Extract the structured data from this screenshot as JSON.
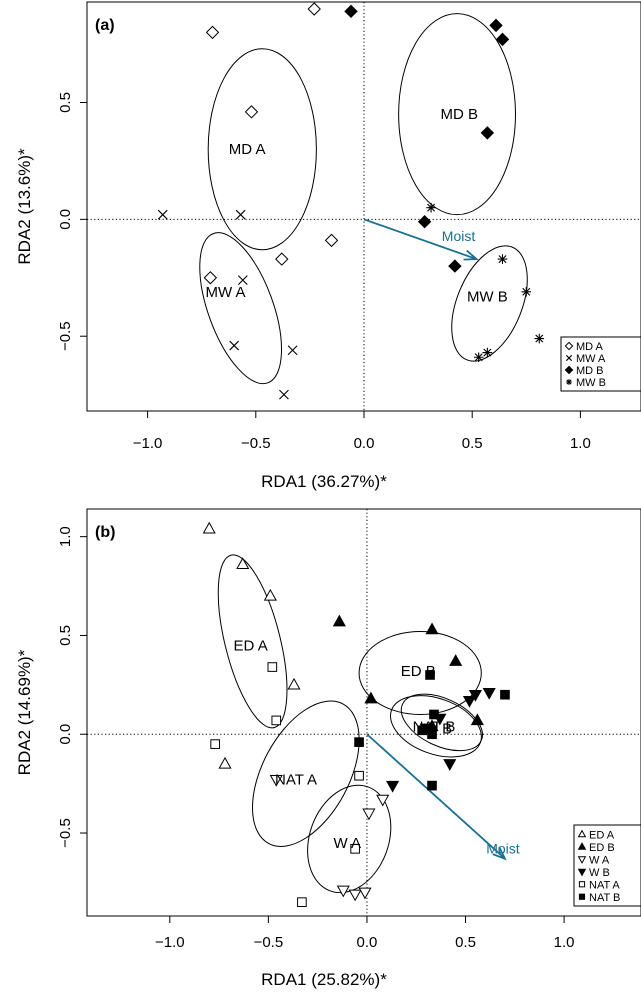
{
  "chart_data": [
    {
      "type": "scatter",
      "panel_label": "(a)",
      "xlabel": "RDA1 (36.27%)*",
      "ylabel": "RDA2 (13.6%)*",
      "xlim": [
        -1.28,
        1.28
      ],
      "ylim": [
        -0.82,
        0.93
      ],
      "xticks": [
        -1.0,
        -0.5,
        0.0,
        0.5,
        1.0
      ],
      "yticks": [
        -0.5,
        0.0,
        0.5
      ],
      "xtick_labels": [
        "−1.0",
        "−0.5",
        "0.0",
        "0.5",
        "1.0"
      ],
      "ytick_labels": [
        "−0.5",
        "0.0",
        "0.5"
      ],
      "reference_lines": {
        "x": 0,
        "y": 0,
        "style": "dotted"
      },
      "vector": {
        "label": "Moist",
        "x": 0.52,
        "y": -0.17,
        "color": "#1a7091"
      },
      "legend": {
        "placement": "bottom-right",
        "entries": [
          {
            "label": "MD A",
            "symbol": "diamond-open"
          },
          {
            "label": "MW A",
            "symbol": "x"
          },
          {
            "label": "MD B",
            "symbol": "diamond-filled"
          },
          {
            "label": "MW B",
            "symbol": "asterisk"
          }
        ]
      },
      "groups": [
        {
          "label": "MD A",
          "symbol": "diamond-open",
          "points": [
            [
              -0.7,
              0.8
            ],
            [
              -0.23,
              0.9
            ],
            [
              -0.52,
              0.46
            ],
            [
              -0.15,
              -0.09
            ],
            [
              -0.38,
              -0.17
            ],
            [
              -0.71,
              -0.25
            ]
          ],
          "ellipse": {
            "cx": -0.47,
            "cy": 0.3,
            "rx": 0.25,
            "ry": 0.43,
            "angle": 0
          },
          "label_pos": [
            -0.54,
            0.3
          ]
        },
        {
          "label": "MW A",
          "symbol": "x",
          "points": [
            [
              -0.93,
              0.02
            ],
            [
              -0.57,
              0.02
            ],
            [
              -0.56,
              -0.26
            ],
            [
              -0.6,
              -0.54
            ],
            [
              -0.33,
              -0.56
            ],
            [
              -0.37,
              -0.75
            ]
          ],
          "ellipse": {
            "cx": -0.57,
            "cy": -0.38,
            "rx": 0.15,
            "ry": 0.34,
            "angle": 20
          },
          "label_pos": [
            -0.64,
            -0.31
          ]
        },
        {
          "label": "MD B",
          "symbol": "diamond-filled",
          "points": [
            [
              -0.06,
              0.89
            ],
            [
              0.61,
              0.83
            ],
            [
              0.64,
              0.77
            ],
            [
              0.57,
              0.37
            ],
            [
              0.28,
              -0.01
            ],
            [
              0.42,
              -0.2
            ]
          ],
          "ellipse": {
            "cx": 0.43,
            "cy": 0.45,
            "rx": 0.27,
            "ry": 0.43,
            "angle": 0
          },
          "label_pos": [
            0.44,
            0.45
          ]
        },
        {
          "label": "MW B",
          "symbol": "asterisk",
          "points": [
            [
              0.31,
              0.05
            ],
            [
              0.64,
              -0.17
            ],
            [
              0.75,
              -0.31
            ],
            [
              0.81,
              -0.51
            ],
            [
              0.57,
              -0.57
            ],
            [
              0.53,
              -0.59
            ]
          ],
          "ellipse": {
            "cx": 0.58,
            "cy": -0.36,
            "rx": 0.15,
            "ry": 0.26,
            "angle": -22
          },
          "label_pos": [
            0.57,
            -0.33
          ]
        }
      ]
    },
    {
      "type": "scatter",
      "panel_label": "(b)",
      "xlabel": "RDA1 (25.82%)*",
      "ylabel": "RDA2 (14.69%)*",
      "xlim": [
        -1.42,
        1.39
      ],
      "ylim": [
        -0.92,
        1.14
      ],
      "xticks": [
        -1.0,
        -0.5,
        0.0,
        0.5,
        1.0
      ],
      "yticks": [
        -0.5,
        0.0,
        0.5,
        1.0
      ],
      "xtick_labels": [
        "−1.0",
        "−0.5",
        "0.0",
        "0.5",
        "1.0"
      ],
      "ytick_labels": [
        "−0.5",
        "0.0",
        "0.5",
        "1.0"
      ],
      "reference_lines": {
        "x": 0,
        "y": 0,
        "style": "dotted"
      },
      "vector": {
        "label": "Moist",
        "x": 0.7,
        "y": -0.63,
        "color": "#1a7091"
      },
      "legend": {
        "placement": "bottom-right",
        "entries": [
          {
            "label": "ED A",
            "symbol": "triangle-up-open"
          },
          {
            "label": "ED B",
            "symbol": "triangle-up-filled"
          },
          {
            "label": "W A",
            "symbol": "triangle-down-open"
          },
          {
            "label": "W B",
            "symbol": "triangle-down-filled"
          },
          {
            "label": "NAT A",
            "symbol": "square-open"
          },
          {
            "label": "NAT B",
            "symbol": "square-filled"
          }
        ]
      },
      "groups": [
        {
          "label": "ED A",
          "symbol": "triangle-up-open",
          "points": [
            [
              -0.8,
              1.04
            ],
            [
              -0.63,
              0.86
            ],
            [
              -0.49,
              0.7
            ],
            [
              -0.37,
              0.25
            ],
            [
              -0.72,
              -0.15
            ]
          ],
          "ellipse": {
            "cx": -0.58,
            "cy": 0.47,
            "rx": 0.14,
            "ry": 0.45,
            "angle": 14
          },
          "label_pos": [
            -0.59,
            0.45
          ]
        },
        {
          "label": "ED B",
          "symbol": "triangle-up-filled",
          "points": [
            [
              -0.14,
              0.57
            ],
            [
              0.33,
              0.53
            ],
            [
              0.45,
              0.37
            ],
            [
              0.02,
              0.18
            ],
            [
              0.33,
              0.04
            ],
            [
              0.56,
              0.07
            ]
          ],
          "ellipse": {
            "cx": 0.27,
            "cy": 0.31,
            "rx": 0.31,
            "ry": 0.21,
            "angle": 0
          },
          "label_pos": [
            0.26,
            0.32
          ]
        },
        {
          "label": "W A",
          "symbol": "triangle-down-open",
          "points": [
            [
              -0.46,
              -0.23
            ],
            [
              0.08,
              -0.33
            ],
            [
              0.01,
              -0.4
            ],
            [
              -0.12,
              -0.79
            ],
            [
              -0.06,
              -0.81
            ],
            [
              -0.01,
              -0.8
            ]
          ],
          "ellipse": {
            "cx": -0.09,
            "cy": -0.53,
            "rx": 0.2,
            "ry": 0.28,
            "angle": -20
          },
          "label_pos": [
            -0.1,
            -0.55
          ]
        },
        {
          "label": "W B",
          "symbol": "triangle-down-filled",
          "points": [
            [
              0.13,
              -0.26
            ],
            [
              0.42,
              -0.15
            ],
            [
              0.3,
              0.03
            ],
            [
              0.55,
              0.2
            ],
            [
              0.62,
              0.21
            ],
            [
              0.37,
              0.08
            ],
            [
              0.52,
              0.17
            ]
          ],
          "ellipse": {
            "cx": 0.38,
            "cy": 0.06,
            "rx": 0.22,
            "ry": 0.12,
            "angle": -25
          },
          "label_pos": [
            0.36,
            0.03
          ]
        },
        {
          "label": "NAT A",
          "symbol": "square-open",
          "points": [
            [
              -0.48,
              0.34
            ],
            [
              -0.46,
              0.07
            ],
            [
              -0.77,
              -0.05
            ],
            [
              -0.04,
              -0.21
            ],
            [
              -0.06,
              -0.58
            ],
            [
              -0.33,
              -0.85
            ]
          ],
          "ellipse": {
            "cx": -0.31,
            "cy": -0.2,
            "rx": 0.22,
            "ry": 0.4,
            "angle": -28
          },
          "label_pos": [
            -0.36,
            -0.23
          ]
        },
        {
          "label": "NAT B",
          "symbol": "square-filled",
          "points": [
            [
              -0.04,
              -0.04
            ],
            [
              0.32,
              0.3
            ],
            [
              0.34,
              0.1
            ],
            [
              0.28,
              0.02
            ],
            [
              0.33,
              0.0
            ],
            [
              0.7,
              0.2
            ],
            [
              0.33,
              -0.26
            ]
          ],
          "ellipse": {
            "cx": 0.35,
            "cy": 0.04,
            "rx": 0.24,
            "ry": 0.14,
            "angle": -20
          },
          "label_pos": [
            0.34,
            0.04
          ]
        }
      ]
    }
  ]
}
